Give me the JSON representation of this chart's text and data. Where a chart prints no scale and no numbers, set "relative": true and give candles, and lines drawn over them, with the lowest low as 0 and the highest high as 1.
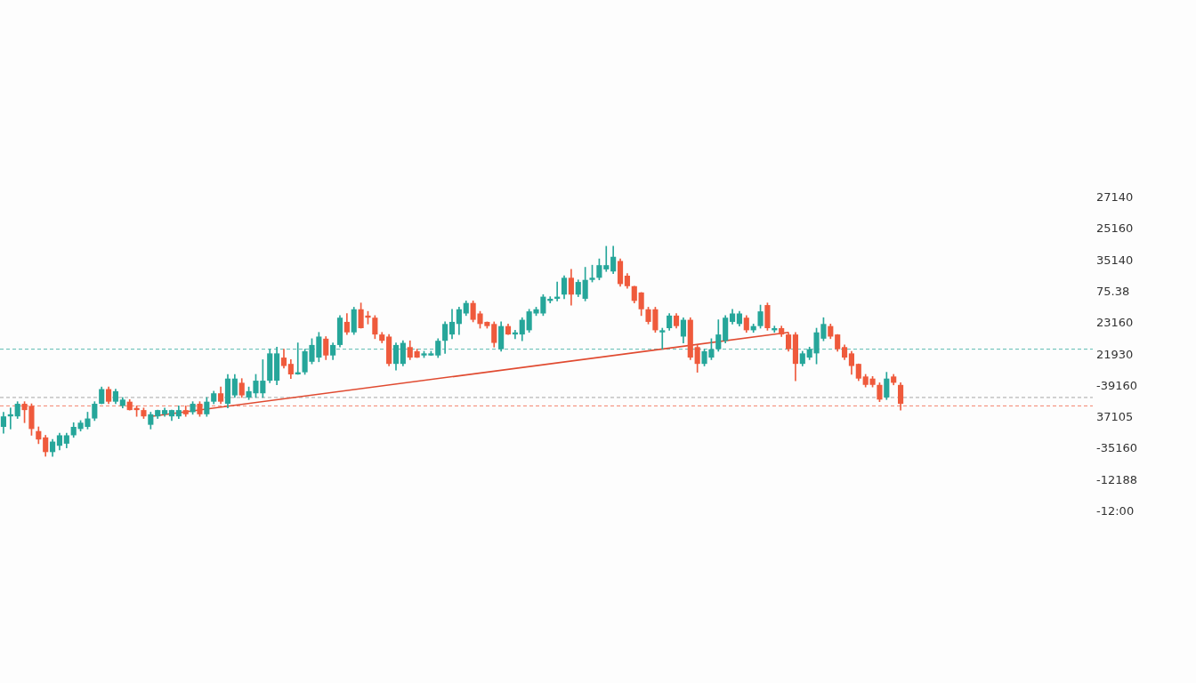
{
  "chart_data": {
    "type": "candlestick",
    "relative": true,
    "categories": [
      null,
      null,
      null,
      null,
      null,
      null,
      null,
      null,
      null,
      null,
      null,
      null,
      null,
      null,
      null,
      null,
      null,
      null,
      null,
      null,
      null,
      null,
      null,
      null,
      null,
      null,
      null,
      null,
      null,
      null,
      null,
      null,
      null,
      null,
      null,
      null,
      null,
      null,
      null,
      null,
      null,
      null,
      null,
      null,
      null,
      null,
      null,
      null,
      null,
      null,
      null,
      null,
      null,
      null,
      null,
      null,
      null,
      null,
      null,
      null,
      null,
      null,
      null,
      null,
      null,
      null,
      null,
      null,
      null,
      null,
      null,
      null,
      null,
      null,
      null,
      null,
      null,
      null,
      null,
      null,
      null,
      null,
      null,
      null,
      null,
      null,
      null,
      null,
      null,
      null,
      null,
      null,
      null,
      null,
      null,
      null,
      null,
      null,
      null,
      null,
      null,
      null,
      null,
      null,
      null,
      null,
      null,
      null,
      null,
      null,
      null,
      null,
      null,
      null,
      null,
      null,
      null,
      null,
      null,
      null,
      null,
      null,
      null,
      null,
      null,
      null,
      null,
      null,
      null
    ],
    "ohlc": [
      [
        0.14,
        0.21,
        0.11,
        0.19
      ],
      [
        0.19,
        0.23,
        0.13,
        0.2
      ],
      [
        0.19,
        0.26,
        0.18,
        0.25
      ],
      [
        0.25,
        0.26,
        0.16,
        0.22
      ],
      [
        0.24,
        0.25,
        0.1,
        0.13
      ],
      [
        0.12,
        0.14,
        0.06,
        0.08
      ],
      [
        0.09,
        0.1,
        0,
        0.02
      ],
      [
        0.02,
        0.08,
        0,
        0.07
      ],
      [
        0.05,
        0.11,
        0.03,
        0.1
      ],
      [
        0.06,
        0.11,
        0.04,
        0.1
      ],
      [
        0.1,
        0.16,
        0.09,
        0.14
      ],
      [
        0.13,
        0.17,
        0.12,
        0.16
      ],
      [
        0.14,
        0.21,
        0.13,
        0.18
      ],
      [
        0.18,
        0.26,
        0.17,
        0.25
      ],
      [
        0.25,
        0.33,
        0.25,
        0.32
      ],
      [
        0.32,
        0.33,
        0.25,
        0.26
      ],
      [
        0.26,
        0.32,
        0.25,
        0.31
      ],
      [
        0.24,
        0.28,
        0.23,
        0.27
      ],
      [
        0.26,
        0.27,
        0.22,
        0.22
      ],
      [
        0.23,
        0.24,
        0.19,
        0.22
      ],
      [
        0.22,
        0.23,
        0.18,
        0.19
      ],
      [
        0.15,
        0.21,
        0.13,
        0.2
      ],
      [
        0.19,
        0.22,
        0.18,
        0.22
      ],
      [
        0.2,
        0.23,
        0.19,
        0.22
      ],
      [
        0.19,
        0.22,
        0.17,
        0.22
      ],
      [
        0.19,
        0.24,
        0.18,
        0.22
      ],
      [
        0.22,
        0.24,
        0.19,
        0.2
      ],
      [
        0.21,
        0.26,
        0.2,
        0.25
      ],
      [
        0.25,
        0.26,
        0.19,
        0.2
      ],
      [
        0.2,
        0.28,
        0.19,
        0.26
      ],
      [
        0.26,
        0.31,
        0.25,
        0.3
      ],
      [
        0.3,
        0.33,
        0.25,
        0.26
      ],
      [
        0.25,
        0.39,
        0.23,
        0.37
      ],
      [
        0.29,
        0.39,
        0.28,
        0.37
      ],
      [
        0.35,
        0.37,
        0.28,
        0.29
      ],
      [
        0.28,
        0.33,
        0.27,
        0.31
      ],
      [
        0.3,
        0.39,
        0.28,
        0.36
      ],
      [
        0.3,
        0.46,
        0.28,
        0.36
      ],
      [
        0.36,
        0.51,
        0.35,
        0.49
      ],
      [
        0.36,
        0.52,
        0.34,
        0.49
      ],
      [
        0.47,
        0.51,
        0.42,
        0.43
      ],
      [
        0.44,
        0.46,
        0.37,
        0.39
      ],
      [
        0.39,
        0.54,
        0.39,
        0.4
      ],
      [
        0.4,
        0.51,
        0.39,
        0.5
      ],
      [
        0.45,
        0.56,
        0.44,
        0.53
      ],
      [
        0.47,
        0.59,
        0.45,
        0.57
      ],
      [
        0.56,
        0.57,
        0.46,
        0.48
      ],
      [
        0.48,
        0.54,
        0.46,
        0.53
      ],
      [
        0.53,
        0.67,
        0.52,
        0.66
      ],
      [
        0.64,
        0.68,
        0.58,
        0.59
      ],
      [
        0.59,
        0.71,
        0.58,
        0.7
      ],
      [
        0.7,
        0.73,
        0.61,
        0.61
      ],
      [
        0.67,
        0.69,
        0.63,
        0.66
      ],
      [
        0.66,
        0.67,
        0.56,
        0.58
      ],
      [
        0.58,
        0.59,
        0.54,
        0.55
      ],
      [
        0.57,
        0.58,
        0.43,
        0.44
      ],
      [
        0.44,
        0.54,
        0.41,
        0.53
      ],
      [
        0.44,
        0.55,
        0.43,
        0.54
      ],
      [
        0.52,
        0.55,
        0.46,
        0.47
      ],
      [
        0.5,
        0.51,
        0.47,
        0.47
      ],
      [
        0.48,
        0.5,
        0.47,
        0.49
      ],
      [
        0.48,
        0.5,
        0.48,
        0.49
      ],
      [
        0.48,
        0.56,
        0.47,
        0.55
      ],
      [
        0.55,
        0.64,
        0.49,
        0.63
      ],
      [
        0.58,
        0.7,
        0.56,
        0.64
      ],
      [
        0.63,
        0.71,
        0.58,
        0.7
      ],
      [
        0.68,
        0.74,
        0.67,
        0.73
      ],
      [
        0.73,
        0.74,
        0.64,
        0.65
      ],
      [
        0.68,
        0.69,
        0.61,
        0.63
      ],
      [
        0.64,
        0.64,
        0.61,
        0.62
      ],
      [
        0.63,
        0.64,
        0.52,
        0.54
      ],
      [
        0.51,
        0.64,
        0.5,
        0.62
      ],
      [
        0.62,
        0.63,
        0.58,
        0.58
      ],
      [
        0.58,
        0.6,
        0.56,
        0.59
      ],
      [
        0.58,
        0.66,
        0.55,
        0.65
      ],
      [
        0.6,
        0.7,
        0.59,
        0.69
      ],
      [
        0.68,
        0.71,
        0.67,
        0.7
      ],
      [
        0.68,
        0.77,
        0.67,
        0.76
      ],
      [
        0.74,
        0.76,
        0.73,
        0.75
      ],
      [
        0.75,
        0.83,
        0.74,
        0.76
      ],
      [
        0.77,
        0.86,
        0.75,
        0.85
      ],
      [
        0.85,
        0.89,
        0.72,
        0.77
      ],
      [
        0.77,
        0.84,
        0.76,
        0.83
      ],
      [
        0.75,
        0.9,
        0.74,
        0.84
      ],
      [
        0.84,
        0.91,
        0.83,
        0.85
      ],
      [
        0.85,
        0.94,
        0.84,
        0.91
      ],
      [
        0.89,
        1,
        0.88,
        0.91
      ],
      [
        0.88,
        1,
        0.87,
        0.95
      ],
      [
        0.93,
        0.94,
        0.81,
        0.82
      ],
      [
        0.86,
        0.87,
        0.8,
        0.81
      ],
      [
        0.81,
        0.81,
        0.73,
        0.74
      ],
      [
        0.78,
        0.78,
        0.67,
        0.7
      ],
      [
        0.7,
        0.71,
        0.63,
        0.64
      ],
      [
        0.7,
        0.71,
        0.59,
        0.6
      ],
      [
        0.59,
        0.61,
        0.51,
        0.6
      ],
      [
        0.61,
        0.68,
        0.6,
        0.67
      ],
      [
        0.67,
        0.68,
        0.61,
        0.62
      ],
      [
        0.57,
        0.66,
        0.54,
        0.65
      ],
      [
        0.65,
        0.66,
        0.46,
        0.47
      ],
      [
        0.52,
        0.53,
        0.4,
        0.44
      ],
      [
        0.44,
        0.51,
        0.43,
        0.5
      ],
      [
        0.47,
        0.56,
        0.46,
        0.51
      ],
      [
        0.51,
        0.65,
        0.5,
        0.58
      ],
      [
        0.55,
        0.67,
        0.54,
        0.66
      ],
      [
        0.64,
        0.7,
        0.63,
        0.68
      ],
      [
        0.63,
        0.69,
        0.62,
        0.68
      ],
      [
        0.66,
        0.67,
        0.59,
        0.6
      ],
      [
        0.6,
        0.63,
        0.59,
        0.62
      ],
      [
        0.62,
        0.72,
        0.61,
        0.69
      ],
      [
        0.72,
        0.73,
        0.6,
        0.61
      ],
      [
        0.6,
        0.62,
        0.59,
        0.61
      ],
      [
        0.61,
        0.62,
        0.57,
        0.58
      ],
      [
        0.58,
        0.59,
        0.5,
        0.51
      ],
      [
        0.58,
        0.59,
        0.36,
        0.44
      ],
      [
        0.44,
        0.5,
        0.43,
        0.49
      ],
      [
        0.47,
        0.52,
        0.46,
        0.51
      ],
      [
        0.49,
        0.61,
        0.44,
        0.59
      ],
      [
        0.56,
        0.66,
        0.55,
        0.63
      ],
      [
        0.62,
        0.63,
        0.56,
        0.57
      ],
      [
        0.58,
        0.58,
        0.5,
        0.51
      ],
      [
        0.52,
        0.53,
        0.46,
        0.47
      ],
      [
        0.49,
        0.5,
        0.39,
        0.43
      ],
      [
        0.44,
        0.44,
        0.36,
        0.37
      ],
      [
        0.38,
        0.39,
        0.33,
        0.34
      ],
      [
        0.37,
        0.38,
        0.33,
        0.34
      ],
      [
        0.34,
        0.35,
        0.26,
        0.27
      ],
      [
        0.28,
        0.4,
        0.27,
        0.37
      ],
      [
        0.38,
        0.39,
        0.34,
        0.35
      ],
      [
        0.34,
        0.35,
        0.22,
        0.25
      ]
    ],
    "colors": [
      "#26a69a",
      "#26a69a",
      "#26a69a",
      "#ef5a3c",
      "#ef5a3c",
      "#ef5a3c",
      "#ef5a3c",
      "#26a69a",
      "#26a69a",
      "#26a69a",
      "#26a69a",
      "#26a69a",
      "#26a69a",
      "#26a69a",
      "#26a69a",
      "#ef5a3c",
      "#26a69a",
      "#26a69a",
      "#ef5a3c",
      "#ef5a3c",
      "#ef5a3c",
      "#26a69a",
      "#26a69a",
      "#26a69a",
      "#26a69a",
      "#26a69a",
      "#ef5a3c",
      "#26a69a",
      "#ef5a3c",
      "#26a69a",
      "#26a69a",
      "#ef5a3c",
      "#26a69a",
      "#26a69a",
      "#ef5a3c",
      "#26a69a",
      "#26a69a",
      "#26a69a",
      "#26a69a",
      "#26a69a",
      "#ef5a3c",
      "#ef5a3c",
      "#26a69a",
      "#26a69a",
      "#26a69a",
      "#26a69a",
      "#ef5a3c",
      "#26a69a",
      "#26a69a",
      "#ef5a3c",
      "#26a69a",
      "#ef5a3c",
      "#ef5a3c",
      "#ef5a3c",
      "#ef5a3c",
      "#ef5a3c",
      "#26a69a",
      "#26a69a",
      "#ef5a3c",
      "#ef5a3c",
      "#26a69a",
      "#26a69a",
      "#26a69a",
      "#26a69a",
      "#26a69a",
      "#26a69a",
      "#26a69a",
      "#ef5a3c",
      "#ef5a3c",
      "#ef5a3c",
      "#ef5a3c",
      "#26a69a",
      "#ef5a3c",
      "#26a69a",
      "#26a69a",
      "#26a69a",
      "#26a69a",
      "#26a69a",
      "#26a69a",
      "#26a69a",
      "#26a69a",
      "#ef5a3c",
      "#26a69a",
      "#26a69a",
      "#26a69a",
      "#26a69a",
      "#26a69a",
      "#26a69a",
      "#ef5a3c",
      "#ef5a3c",
      "#ef5a3c",
      "#ef5a3c",
      "#ef5a3c",
      "#ef5a3c",
      "#26a69a",
      "#26a69a",
      "#ef5a3c",
      "#26a69a",
      "#ef5a3c",
      "#ef5a3c",
      "#26a69a",
      "#26a69a",
      "#26a69a",
      "#26a69a",
      "#26a69a",
      "#26a69a",
      "#ef5a3c",
      "#26a69a",
      "#26a69a",
      "#ef5a3c",
      "#26a69a",
      "#ef5a3c",
      "#ef5a3c",
      "#ef5a3c",
      "#26a69a",
      "#26a69a",
      "#26a69a",
      "#26a69a",
      "#ef5a3c",
      "#ef5a3c",
      "#ef5a3c",
      "#ef5a3c",
      "#ef5a3c",
      "#ef5a3c",
      "#ef5a3c",
      "#ef5a3c",
      "#26a69a",
      "#ef5a3c",
      "#ef5a3c"
    ],
    "series": [
      {
        "type": "line",
        "color": "#e04a30",
        "values": [
          null,
          null,
          null,
          null,
          null,
          null,
          null,
          null,
          null,
          null,
          null,
          null,
          null,
          null,
          null,
          null,
          null,
          null,
          null,
          null,
          null,
          0.19,
          null,
          null,
          null,
          null,
          null,
          null,
          null,
          null,
          null,
          null,
          null,
          null,
          null,
          null,
          null,
          null,
          null,
          null,
          null,
          null,
          null,
          null,
          null,
          null,
          null,
          null,
          null,
          null,
          null,
          null,
          null,
          null,
          null,
          null,
          null,
          null,
          null,
          null,
          null,
          null,
          null,
          null,
          null,
          null,
          null,
          null,
          null,
          null,
          null,
          null,
          null,
          null,
          null,
          null,
          null,
          null,
          null,
          null,
          null,
          null,
          null,
          null,
          null,
          null,
          null,
          null,
          null,
          null,
          null,
          null,
          null,
          null,
          null,
          null,
          null,
          null,
          null,
          null,
          null,
          null,
          null,
          null,
          null,
          null,
          null,
          null,
          null,
          null,
          null,
          null,
          0.59,
          null,
          null,
          null,
          null,
          null,
          null,
          null,
          null,
          null,
          null,
          null,
          null,
          null,
          null,
          null,
          null
        ]
      }
    ],
    "annotations": [
      "27140",
      "25160",
      "35140",
      "75.38",
      "23160",
      "21930",
      "-39160",
      "37105",
      "-35160",
      "-12188",
      "-12:00"
    ],
    "grid": false,
    "legend": false,
    "ref_lines": [
      {
        "axis": "y",
        "value": 0.51,
        "color": "#26a69a",
        "line_style": "dashed"
      },
      {
        "axis": "y",
        "value": 0.28,
        "color": "#888888",
        "line_style": "dashed"
      },
      {
        "axis": "y",
        "value": 0.24,
        "color": "#ef5a3c",
        "line_style": "dashed"
      }
    ]
  }
}
